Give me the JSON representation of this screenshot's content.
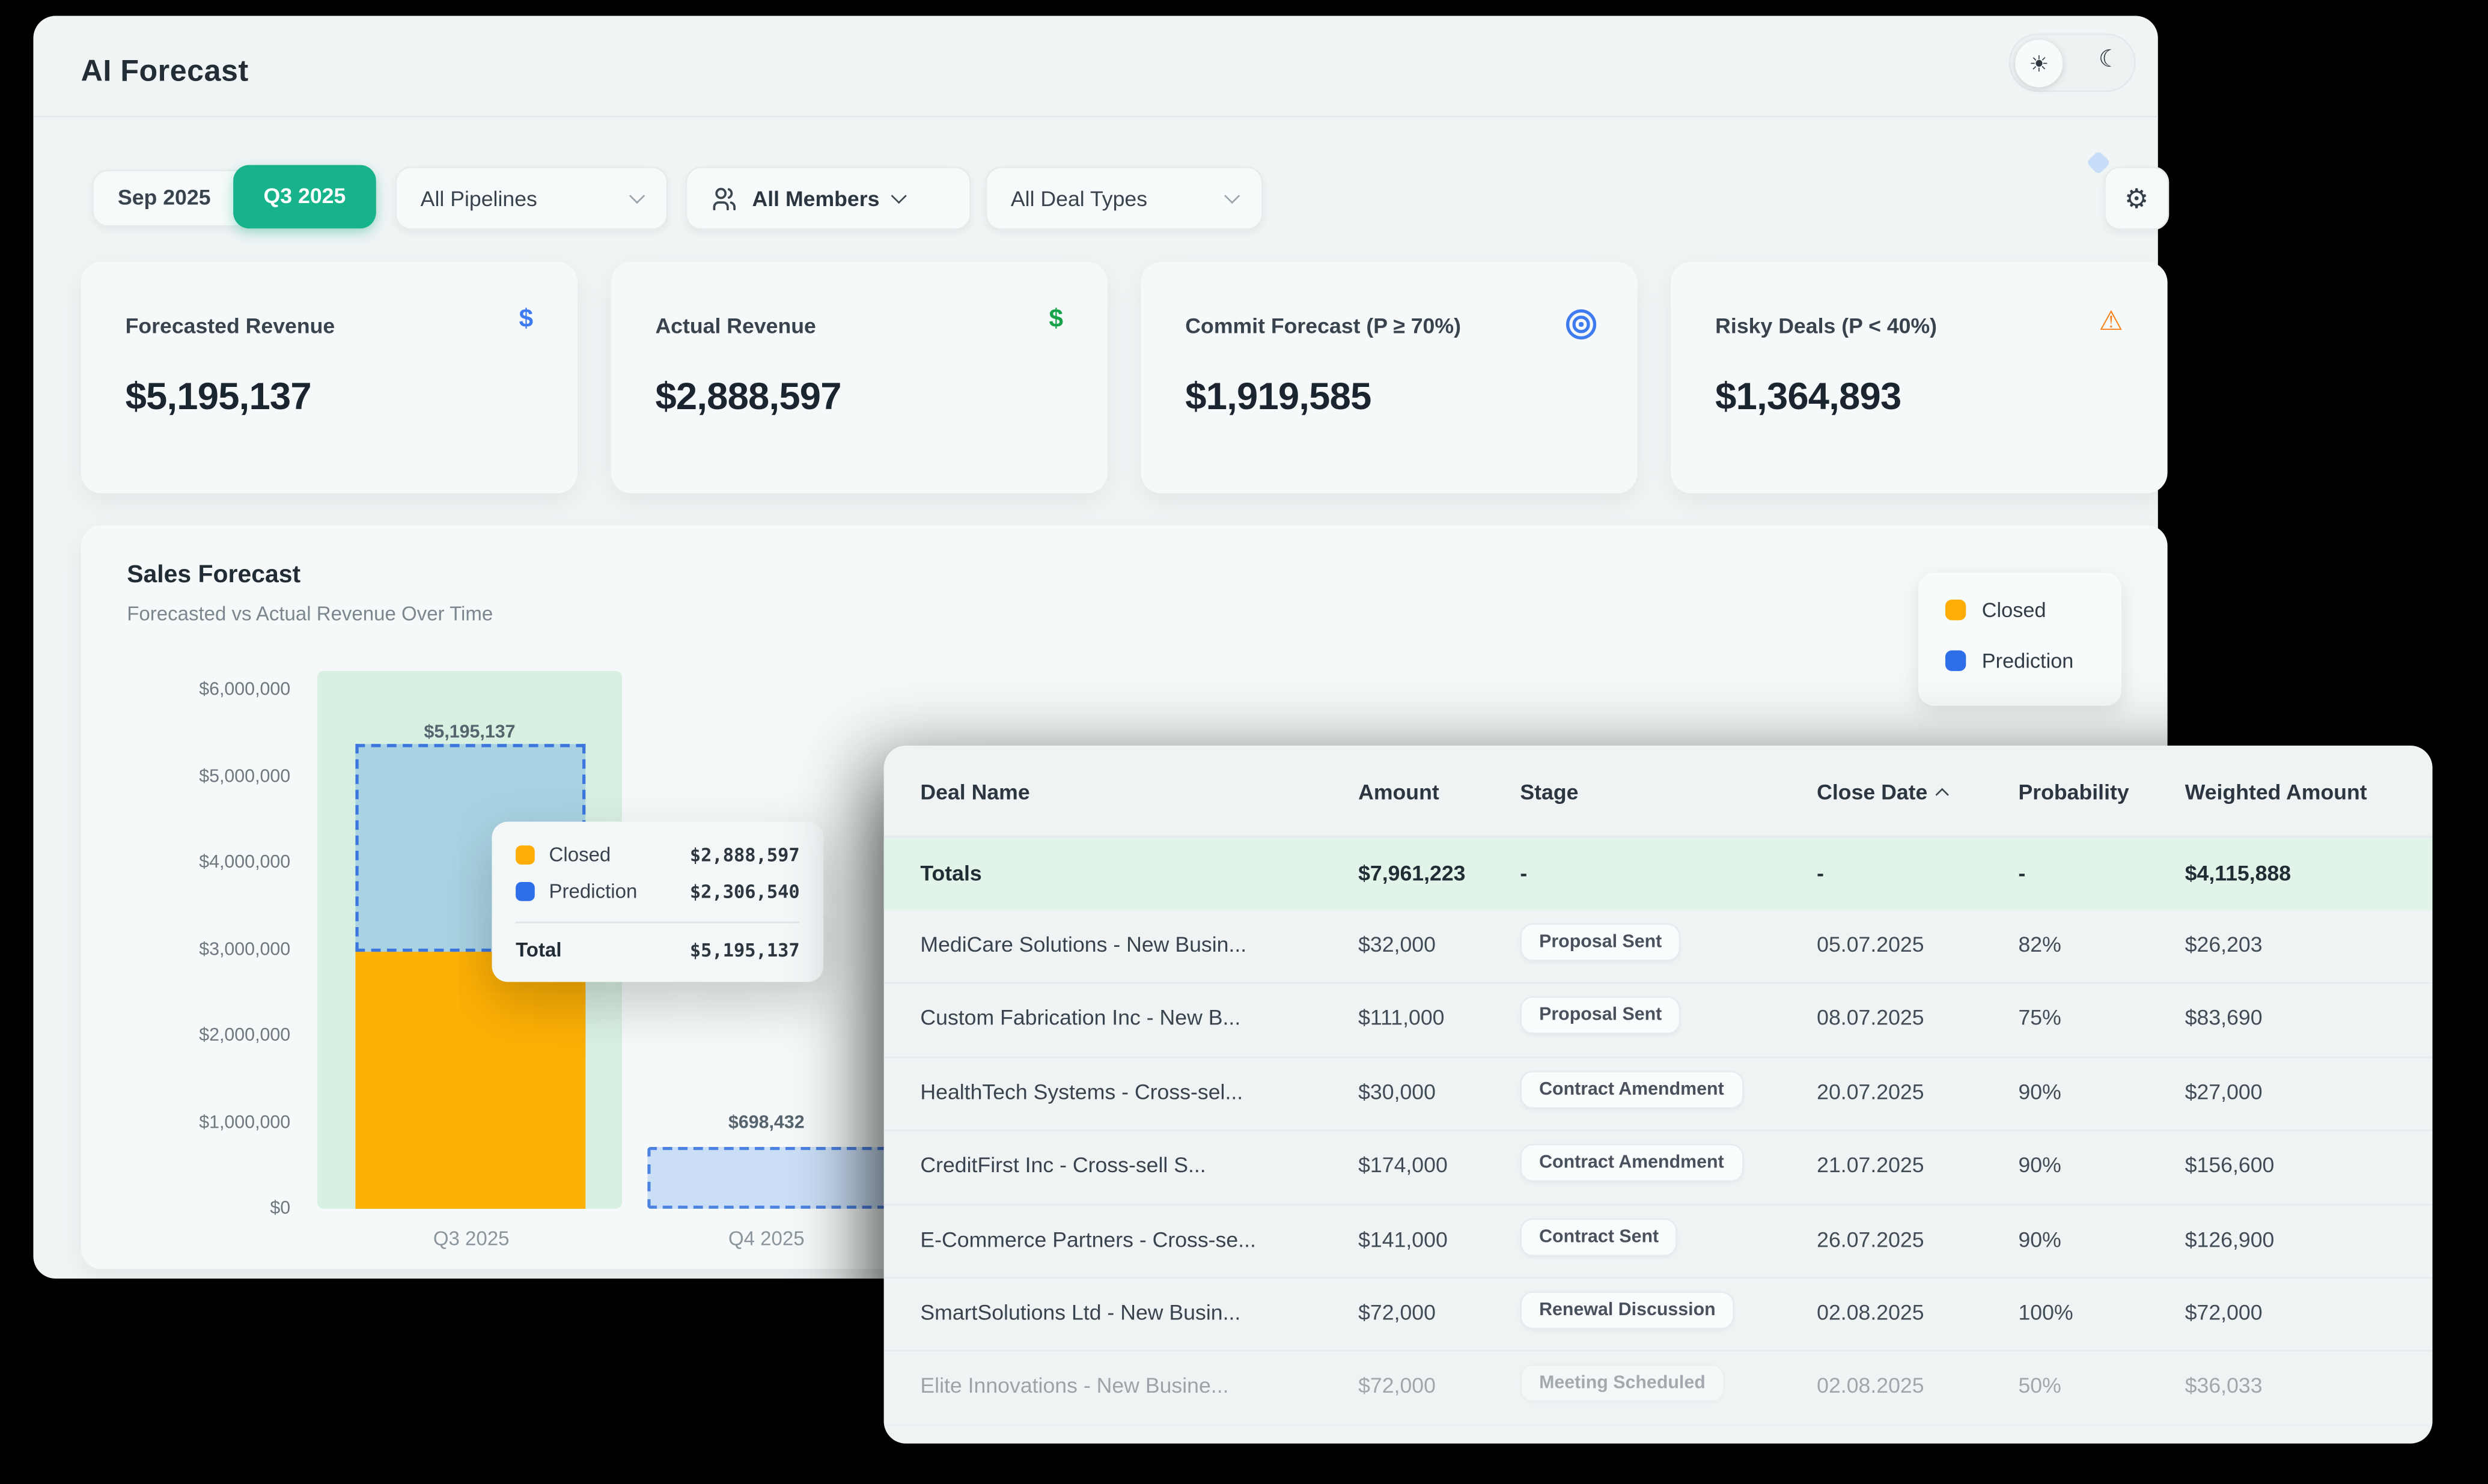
{
  "window": {
    "title": "AI Forecast"
  },
  "icons": {
    "sun": "☀",
    "moon": "☾",
    "gear": "⚙",
    "dollar": "$",
    "warning": "⚠"
  },
  "colors": {
    "accent_green": "#17b38a",
    "closed_orange": "#fdb005",
    "prediction_blue": "#2e6ee8",
    "mint_band": "#d8f0e2",
    "totals_row_bg": "#e2f3e9"
  },
  "filters": {
    "month": "Sep 2025",
    "quarter": "Q3 2025",
    "pipelines": "All Pipelines",
    "members": "All Members",
    "deal_types": "All Deal Types"
  },
  "kpis": [
    {
      "label": "Forecasted Revenue",
      "value": "$5,195,137",
      "icon": "dollar-blue"
    },
    {
      "label": "Actual Revenue",
      "value": "$2,888,597",
      "icon": "dollar-green"
    },
    {
      "label": "Commit Forecast (P ≥ 70%)",
      "value": "$1,919,585",
      "icon": "target-blue"
    },
    {
      "label": "Risky Deals (P < 40%)",
      "value": "$1,364,893",
      "icon": "warning-orange"
    }
  ],
  "chart": {
    "title": "Sales Forecast",
    "subtitle": "Forecasted vs Actual Revenue Over Time",
    "legend": [
      {
        "label": "Closed"
      },
      {
        "label": "Prediction"
      }
    ],
    "y_ticks": [
      "$6,000,000",
      "$5,000,000",
      "$4,000,000",
      "$3,000,000",
      "$2,000,000",
      "$1,000,000",
      "$0"
    ],
    "x_labels": [
      "Q3 2025",
      "Q4 2025"
    ],
    "bar_labels": {
      "q3_total": "$5,195,137",
      "q4_total": "$698,432"
    }
  },
  "chart_data": {
    "type": "bar",
    "stacked": true,
    "categories": [
      "Q3 2025",
      "Q4 2025"
    ],
    "series": [
      {
        "name": "Closed",
        "values": [
          2888597,
          0
        ]
      },
      {
        "name": "Prediction",
        "values": [
          2306540,
          698432
        ]
      }
    ],
    "totals": [
      5195137,
      698432
    ],
    "title": "Sales Forecast",
    "subtitle": "Forecasted vs Actual Revenue Over Time",
    "ylim": [
      0,
      6000000
    ],
    "legend_position": "top-right",
    "grid": false
  },
  "tooltip": {
    "rows": [
      {
        "label": "Closed",
        "value": "$2,888,597"
      },
      {
        "label": "Prediction",
        "value": "$2,306,540"
      }
    ],
    "total_label": "Total",
    "total_value": "$5,195,137"
  },
  "table": {
    "columns": [
      "Deal Name",
      "Amount",
      "Stage",
      "Close Date",
      "Probability",
      "Weighted Amount"
    ],
    "sort": {
      "column": "Close Date",
      "direction": "asc"
    },
    "totals": {
      "name": "Totals",
      "amount": "$7,961,223",
      "stage": "-",
      "close": "-",
      "prob": "-",
      "weighted": "$4,115,888"
    },
    "rows": [
      {
        "name": "MediCare Solutions - New Busin...",
        "amount": "$32,000",
        "stage": "Proposal Sent",
        "close": "05.07.2025",
        "prob": "82%",
        "weighted": "$26,203"
      },
      {
        "name": "Custom Fabrication Inc - New B...",
        "amount": "$111,000",
        "stage": "Proposal Sent",
        "close": "08.07.2025",
        "prob": "75%",
        "weighted": "$83,690"
      },
      {
        "name": "HealthTech Systems - Cross-sel...",
        "amount": "$30,000",
        "stage": "Contract Amendment",
        "close": "20.07.2025",
        "prob": "90%",
        "weighted": "$27,000"
      },
      {
        "name": "CreditFirst Inc - Cross-sell S...",
        "amount": "$174,000",
        "stage": "Contract Amendment",
        "close": "21.07.2025",
        "prob": "90%",
        "weighted": "$156,600"
      },
      {
        "name": "E-Commerce Partners - Cross-se...",
        "amount": "$141,000",
        "stage": "Contract Sent",
        "close": "26.07.2025",
        "prob": "90%",
        "weighted": "$126,900"
      },
      {
        "name": "SmartSolutions Ltd - New Busin...",
        "amount": "$72,000",
        "stage": "Renewal Discussion",
        "close": "02.08.2025",
        "prob": "100%",
        "weighted": "$72,000"
      },
      {
        "name": "Elite Innovations - New Busine...",
        "amount": "$72,000",
        "stage": "Meeting Scheduled",
        "close": "02.08.2025",
        "prob": "50%",
        "weighted": "$36,033"
      }
    ]
  }
}
